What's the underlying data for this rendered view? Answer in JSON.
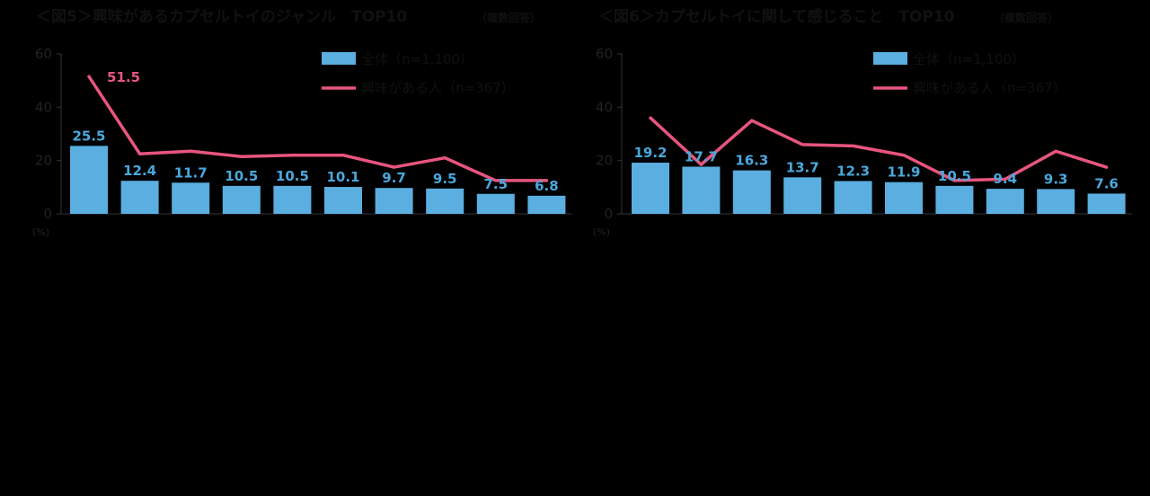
{
  "colors": {
    "bar": "#5aaee0",
    "line": "#e8557f",
    "bar_label": "#4aa8dc",
    "line_label": "#e8557f",
    "axis": "#333333"
  },
  "chart_data": [
    {
      "type": "bar",
      "title": "＜図5＞興味があるカプセルトイのジャンル　TOP10",
      "title_note": "（複数回答）",
      "unit": "(%)",
      "ylim": [
        0,
        60
      ],
      "yticks": [
        "0",
        "20",
        "40",
        "60"
      ],
      "legend": {
        "position": "top-right"
      },
      "series": [
        {
          "name": "全体（n=1,100）",
          "kind": "bar",
          "values": [
            25.5,
            12.4,
            11.7,
            10.5,
            10.5,
            10.1,
            9.7,
            9.5,
            7.5,
            6.8
          ],
          "labels": [
            "25.5",
            "12.4",
            "11.7",
            "10.5",
            "10.5",
            "10.1",
            "9.7",
            "9.5",
            "7.5",
            "6.8"
          ]
        },
        {
          "name": "興味がある人（n=367）",
          "kind": "line",
          "values": [
            51.5,
            22.5,
            23.5,
            21.5,
            22.0,
            22.0,
            17.5,
            21.0,
            12.5,
            12.5
          ],
          "labels": [
            "51.5",
            "",
            "",
            "",
            "",
            "",
            "",
            "",
            "",
            ""
          ]
        }
      ]
    },
    {
      "type": "bar",
      "title": "＜図6＞カプセルトイに関して感じること　TOP10",
      "title_note": "（複数回答）",
      "unit": "(%)",
      "ylim": [
        0,
        60
      ],
      "yticks": [
        "0",
        "20",
        "40",
        "60"
      ],
      "legend": {
        "position": "top-right"
      },
      "series": [
        {
          "name": "全体（n=1,100）",
          "kind": "bar",
          "values": [
            19.2,
            17.7,
            16.3,
            13.7,
            12.3,
            11.9,
            10.5,
            9.4,
            9.3,
            7.6
          ],
          "labels": [
            "19.2",
            "17.7",
            "16.3",
            "13.7",
            "12.3",
            "11.9",
            "10.5",
            "9.4",
            "9.3",
            "7.6"
          ]
        },
        {
          "name": "興味がある人（n=367）",
          "kind": "line",
          "values": [
            36.0,
            18.5,
            35.0,
            26.0,
            25.5,
            22.0,
            12.5,
            13.0,
            23.5,
            17.5
          ],
          "labels": [
            "",
            "",
            "",
            "",
            "",
            "",
            "",
            "",
            "",
            ""
          ]
        }
      ]
    }
  ]
}
